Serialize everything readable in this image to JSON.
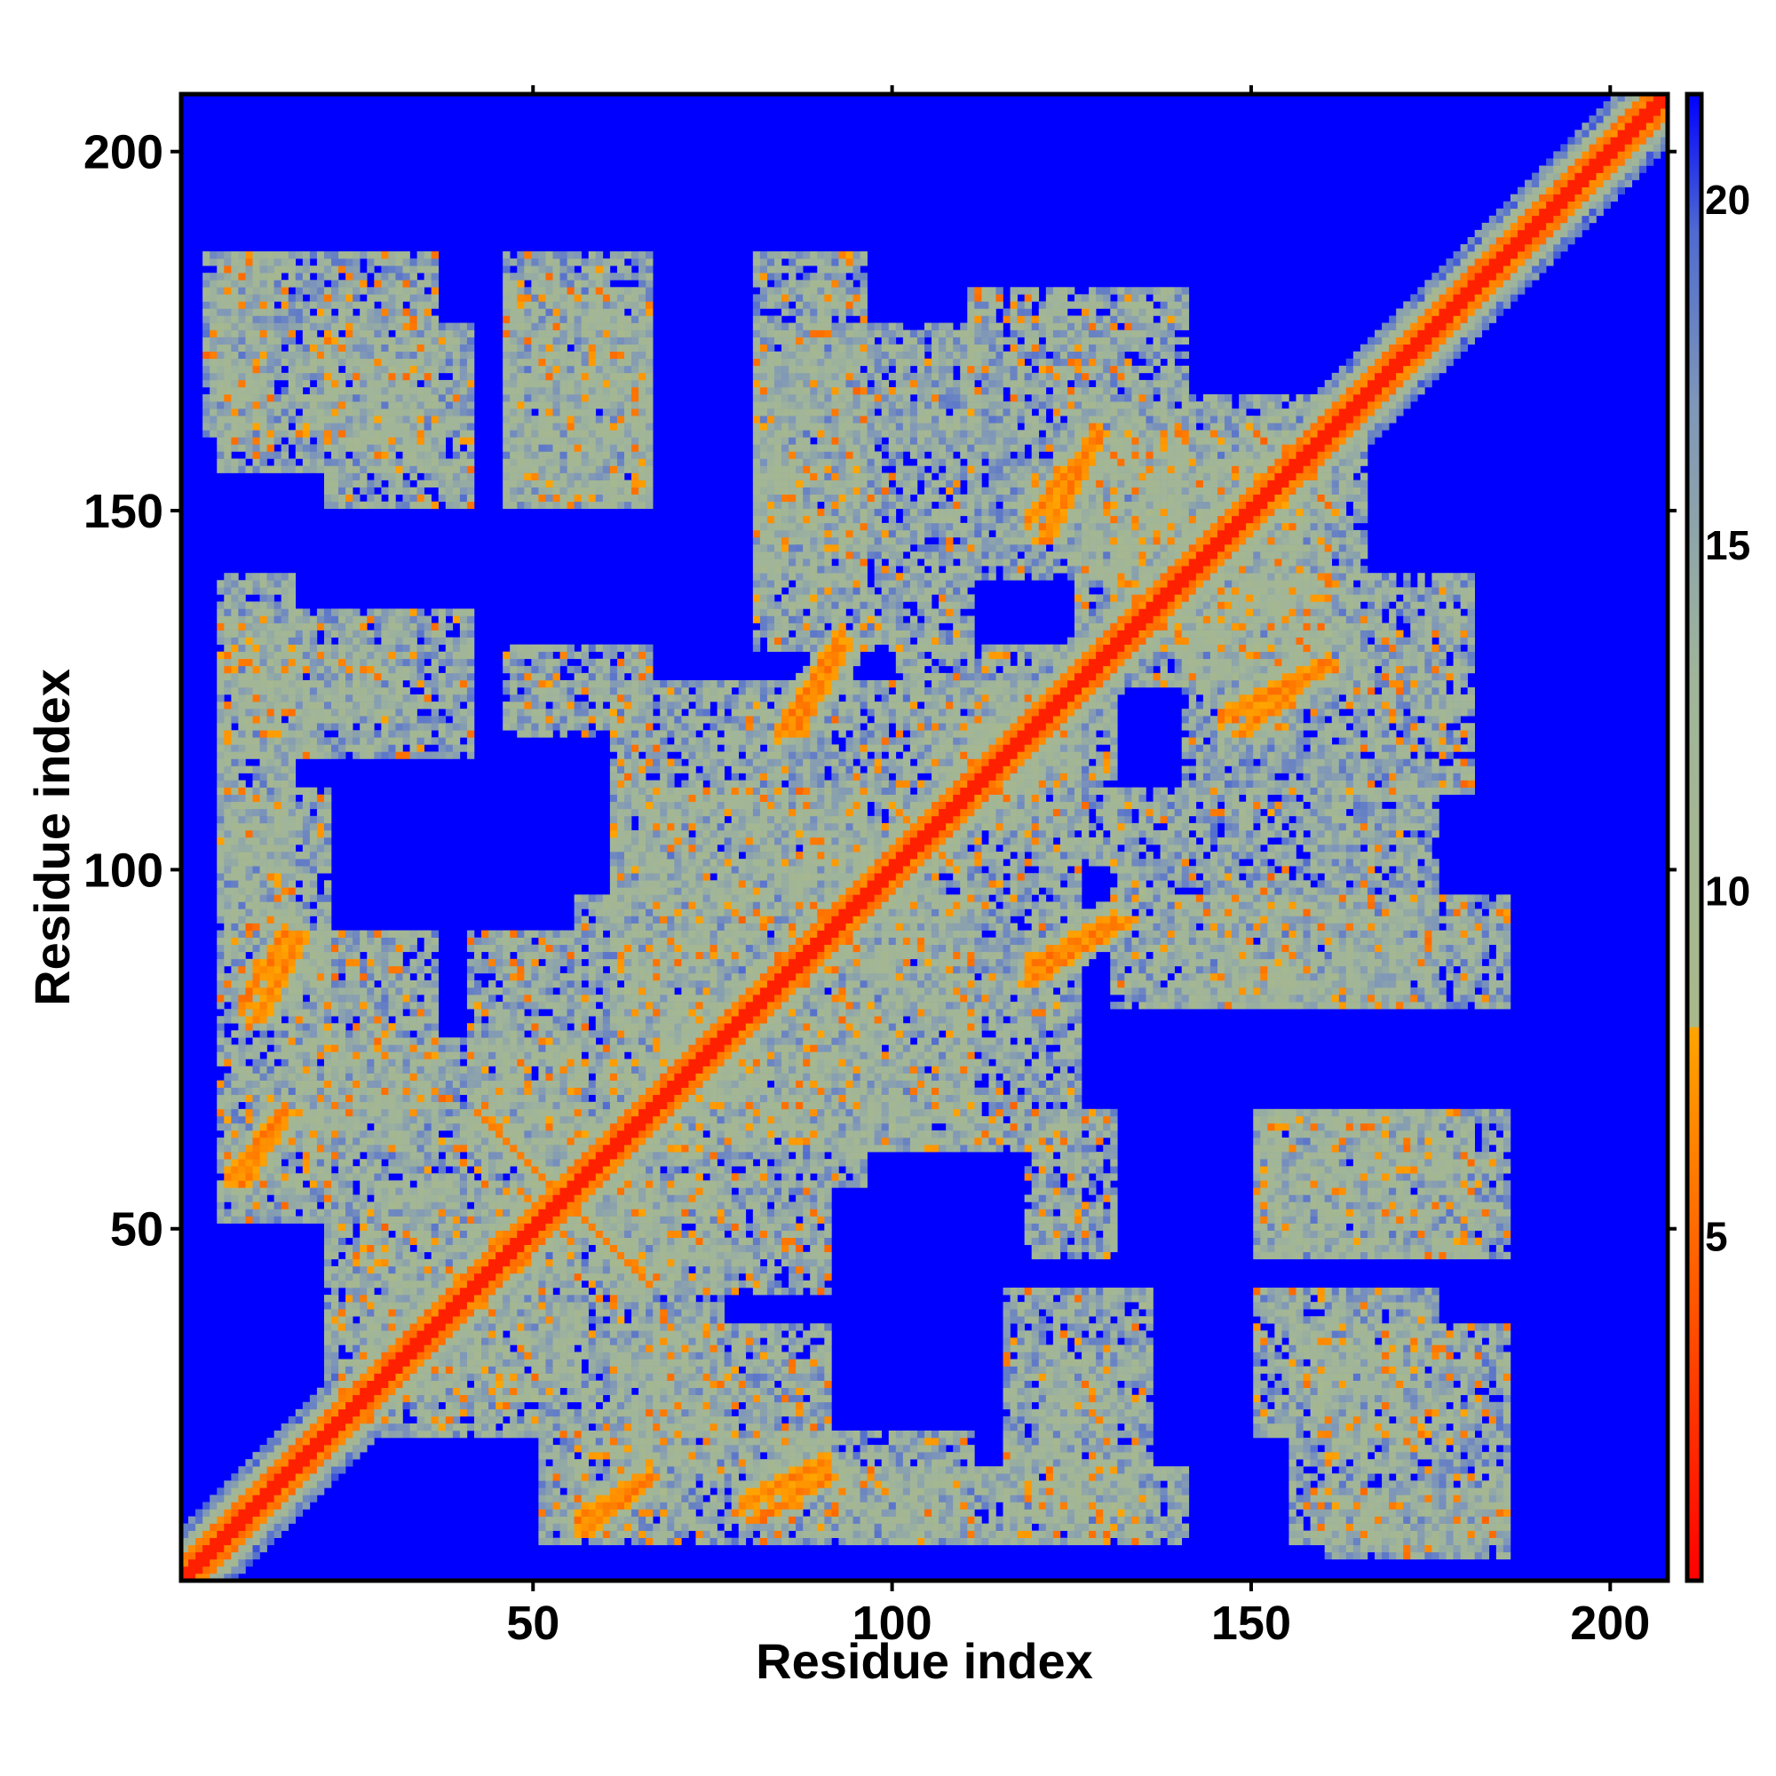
{
  "chart_data": {
    "type": "heatmap",
    "title": "",
    "xlabel": "Residue index",
    "ylabel": "Residue index",
    "xlim": [
      1,
      208
    ],
    "ylim": [
      1,
      208
    ],
    "x_ticks": [
      50,
      100,
      150,
      200
    ],
    "y_ticks": [
      50,
      100,
      150,
      200
    ],
    "colorbar": {
      "range": [
        0,
        21.5
      ],
      "ticks": [
        5,
        10,
        15,
        20
      ],
      "stops": [
        {
          "value": 0,
          "color": "#ff0000"
        },
        {
          "value": 4,
          "color": "#ff5500"
        },
        {
          "value": 8,
          "color": "#ffa500"
        },
        {
          "value": 8.01,
          "color": "#a9b98b"
        },
        {
          "value": 13,
          "color": "#a0b59a"
        },
        {
          "value": 17,
          "color": "#7f97b8"
        },
        {
          "value": 19.5,
          "color": "#4f6bd0"
        },
        {
          "value": 21.5,
          "color": "#0000ff"
        }
      ]
    },
    "background_value": 21.5,
    "diagonal_band_halfwidth": 7,
    "contact_clusters": [
      {
        "x": [
          48,
          57
        ],
        "y": [
          48,
          57
        ],
        "type": "crossing"
      },
      {
        "x": [
          8,
          14
        ],
        "y": [
          55,
          65
        ],
        "type": "parallel"
      },
      {
        "x": [
          10,
          16
        ],
        "y": [
          78,
          90
        ],
        "type": "parallel"
      },
      {
        "x": [
          56,
          65
        ],
        "y": [
          6,
          14
        ],
        "type": "parallel"
      },
      {
        "x": [
          80,
          90
        ],
        "y": [
          8,
          14
        ],
        "type": "parallel"
      },
      {
        "x": [
          85,
          92
        ],
        "y": [
          118,
          130
        ],
        "type": "parallel"
      },
      {
        "x": [
          118,
          132
        ],
        "y": [
          83,
          92
        ],
        "type": "parallel"
      },
      {
        "x": [
          120,
          128
        ],
        "y": [
          145,
          160
        ],
        "type": "parallel"
      },
      {
        "x": [
          148,
          160
        ],
        "y": [
          118,
          128
        ],
        "type": "parallel"
      },
      {
        "x": [
          155,
          175
        ],
        "y": [
          155,
          175
        ],
        "type": "parallel"
      },
      {
        "x": [
          5,
          35
        ],
        "y": [
          155,
          185
        ],
        "type": "block"
      },
      {
        "x": [
          45,
          65
        ],
        "y": [
          150,
          180
        ],
        "type": "block"
      },
      {
        "x": [
          80,
          110
        ],
        "y": [
          130,
          175
        ],
        "type": "block"
      },
      {
        "x": [
          110,
          140
        ],
        "y": [
          140,
          180
        ],
        "type": "block"
      },
      {
        "x": [
          5,
          40
        ],
        "y": [
          115,
          135
        ],
        "type": "block"
      },
      {
        "x": [
          60,
          100
        ],
        "y": [
          95,
          125
        ],
        "type": "block"
      },
      {
        "x": [
          105,
          130
        ],
        "y": [
          100,
          125
        ],
        "type": "block"
      },
      {
        "x": [
          130,
          165
        ],
        "y": [
          125,
          160
        ],
        "type": "block"
      },
      {
        "x": [
          140,
          185
        ],
        "y": [
          80,
          95
        ],
        "type": "block"
      },
      {
        "x": [
          5,
          20
        ],
        "y": [
          50,
          110
        ],
        "type": "block"
      },
      {
        "x": [
          25,
          75
        ],
        "y": [
          20,
          55
        ],
        "type": "block"
      },
      {
        "x": [
          40,
          55
        ],
        "y": [
          60,
          90
        ],
        "type": "block"
      },
      {
        "x": [
          55,
          110
        ],
        "y": [
          60,
          95
        ],
        "type": "block"
      },
      {
        "x": [
          60,
          90
        ],
        "y": [
          15,
          35
        ],
        "type": "block"
      },
      {
        "x": [
          120,
          130
        ],
        "y": [
          15,
          30
        ],
        "type": "block"
      },
      {
        "x": [
          150,
          175
        ],
        "y": [
          20,
          40
        ],
        "type": "block"
      },
      {
        "x": [
          150,
          185
        ],
        "y": [
          45,
          65
        ],
        "type": "block"
      },
      {
        "x": [
          90,
          140
        ],
        "y": [
          5,
          15
        ],
        "type": "block"
      },
      {
        "x": [
          160,
          185
        ],
        "y": [
          3,
          12
        ],
        "type": "block"
      },
      {
        "x": [
          118,
          130
        ],
        "y": [
          45,
          65
        ],
        "type": "block"
      }
    ]
  }
}
